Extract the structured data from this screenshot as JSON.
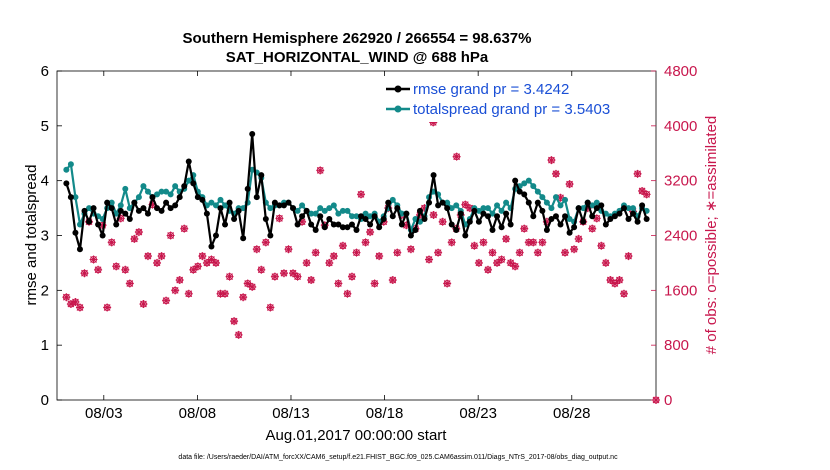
{
  "chart_data": {
    "type": "line",
    "title_line1": "Southern Hemisphere 262920 / 266554 = 98.637%",
    "title_line2": "SAT_HORIZONTAL_WIND @ 688 hPa",
    "xlabel": "Aug.01,2017 00:00:00 start",
    "ylabel_left": "rmse and totalspread",
    "ylabel_right": "# of obs: o=possible; ∗=assimilated",
    "footnote": "data file: /Users/raeder/DAI/ATM_forcXX/CAM6_setup/f.e21.FHIST_BGC.f09_025.CAM6assim.011/Diags_NTrS_2017-08/obs_diag_output.nc",
    "x_range": [
      0.5,
      32.5
    ],
    "ylim_left": [
      0,
      6
    ],
    "ylim_right": [
      0,
      4800
    ],
    "x_ticks": [
      {
        "label": "08/03",
        "x": 3
      },
      {
        "label": "08/08",
        "x": 8
      },
      {
        "label": "08/13",
        "x": 13
      },
      {
        "label": "08/18",
        "x": 18
      },
      {
        "label": "08/23",
        "x": 23
      },
      {
        "label": "08/28",
        "x": 28
      }
    ],
    "y_ticks_left": [
      "0",
      "1",
      "2",
      "3",
      "4",
      "5",
      "6"
    ],
    "y_ticks_right": [
      "0",
      "800",
      "1600",
      "2400",
      "3200",
      "4000",
      "4800"
    ],
    "colors": {
      "rmse": "#000000",
      "spread": "#138a8a",
      "obs": "#c8174d",
      "legend_text": "#1a4fd6"
    },
    "series": [
      {
        "name": "rmse grand pr = 3.4242",
        "axis": "left",
        "values": [
          3.95,
          3.7,
          3.05,
          2.75,
          3.45,
          3.25,
          3.5,
          3.2,
          3.0,
          3.6,
          3.5,
          3.2,
          3.45,
          3.4,
          3.3,
          3.6,
          3.45,
          3.5,
          3.4,
          3.7,
          3.5,
          3.45,
          3.6,
          3.5,
          3.55,
          3.7,
          3.9,
          4.35,
          3.95,
          3.7,
          3.65,
          3.4,
          2.8,
          3.0,
          3.5,
          3.2,
          3.6,
          3.3,
          3.45,
          2.95,
          3.85,
          4.85,
          3.7,
          4.1,
          3.3,
          3.0,
          3.6,
          3.55,
          3.55,
          3.6,
          3.5,
          3.2,
          3.35,
          3.45,
          3.2,
          3.1,
          3.35,
          3.15,
          3.3,
          3.2,
          3.2,
          3.15,
          3.15,
          3.2,
          3.1,
          3.35,
          3.3,
          3.2,
          3.35,
          3.15,
          3.3,
          3.6,
          3.35,
          3.5,
          3.2,
          3.4,
          3.0,
          3.1,
          3.45,
          3.3,
          3.6,
          4.1,
          3.55,
          3.6,
          3.5,
          3.2,
          3.1,
          3.4,
          3.0,
          3.25,
          3.45,
          3.25,
          3.4,
          3.35,
          3.1,
          3.35,
          3.15,
          3.4,
          3.2,
          4.0,
          3.8,
          3.75,
          3.6,
          3.35,
          3.6,
          3.45,
          3.1,
          3.3,
          3.35,
          3.2,
          3.35,
          3.05,
          3.15,
          3.5,
          3.25,
          3.6,
          3.35,
          3.5,
          3.55,
          3.2,
          3.3,
          3.35,
          3.4,
          3.5,
          3.3,
          3.4,
          3.25,
          3.55,
          3.3
        ]
      },
      {
        "name": "totalspread grand pr = 3.5403",
        "axis": "left",
        "values": [
          4.2,
          4.3,
          3.7,
          3.2,
          3.4,
          3.5,
          3.4,
          3.35,
          3.3,
          3.5,
          3.6,
          3.4,
          3.55,
          3.85,
          3.5,
          3.6,
          3.7,
          3.9,
          3.8,
          3.7,
          3.75,
          3.8,
          3.8,
          3.75,
          3.9,
          3.8,
          3.85,
          4.0,
          4.1,
          3.8,
          3.7,
          3.55,
          3.6,
          3.55,
          3.65,
          3.55,
          3.45,
          3.4,
          3.5,
          3.5,
          3.6,
          4.2,
          4.15,
          4.05,
          3.6,
          3.5,
          3.55,
          3.55,
          3.6,
          3.6,
          3.5,
          3.45,
          3.55,
          3.45,
          3.4,
          3.4,
          3.5,
          3.45,
          3.5,
          3.55,
          3.4,
          3.45,
          3.45,
          3.35,
          3.35,
          3.3,
          3.4,
          3.35,
          3.4,
          3.25,
          3.35,
          3.5,
          3.65,
          3.55,
          3.4,
          3.4,
          3.1,
          3.3,
          3.25,
          3.35,
          3.7,
          3.8,
          3.75,
          3.6,
          3.6,
          3.5,
          3.55,
          3.45,
          3.2,
          3.3,
          3.5,
          3.45,
          3.5,
          3.5,
          3.4,
          3.55,
          3.45,
          3.6,
          3.5,
          3.85,
          3.9,
          3.95,
          4.0,
          3.9,
          3.8,
          3.7,
          3.6,
          3.5,
          3.7,
          3.55,
          3.65,
          3.3,
          3.25,
          3.5,
          3.5,
          3.6,
          3.55,
          3.6,
          3.45,
          3.4,
          3.35,
          3.4,
          3.45,
          3.55,
          3.5,
          3.5,
          3.35,
          3.5,
          3.45
        ]
      },
      {
        "name": "obs possible / assimilated",
        "axis": "right",
        "values": [
          1500,
          1400,
          1430,
          1350,
          1850,
          2600,
          2050,
          1900,
          2550,
          1350,
          2300,
          1950,
          2650,
          1900,
          1700,
          2350,
          2450,
          1400,
          2100,
          2850,
          2000,
          2100,
          1450,
          2400,
          1600,
          1750,
          2500,
          1550,
          1900,
          1950,
          2100,
          2000,
          2050,
          2000,
          1550,
          1550,
          1800,
          1150,
          950,
          1500,
          1700,
          1650,
          2200,
          1900,
          2300,
          1350,
          1800,
          2650,
          1850,
          2200,
          1850,
          1800,
          2600,
          2000,
          1750,
          2150,
          3350,
          2550,
          2000,
          2100,
          1700,
          2250,
          1550,
          1800,
          2150,
          3000,
          2300,
          2450,
          1700,
          2100,
          2600,
          2800,
          1750,
          2150,
          2700,
          2550,
          2200,
          2500,
          2700,
          2800,
          2050,
          2700,
          2150,
          2600,
          1700,
          2300,
          2500,
          2700,
          2850,
          2800,
          2250,
          2000,
          2300,
          1900,
          2150,
          2000,
          2050,
          2350,
          2000,
          1950,
          2150,
          2500,
          2300,
          2300,
          2150,
          2300,
          2600,
          3500,
          3300,
          2950,
          2150,
          3150,
          2200,
          2350,
          2600,
          2800,
          2500,
          2650,
          2250,
          2000,
          1750,
          1700,
          1750,
          1550,
          2100,
          2750,
          3300,
          3050,
          3000
        ]
      }
    ],
    "obs_special_points": [
      {
        "x": 20.6,
        "value": 4050
      },
      {
        "x": 20.9,
        "value": 4250
      },
      {
        "x": 21.85,
        "value": 3550
      },
      {
        "x": 32.5,
        "value": 0
      }
    ],
    "legend": {
      "position": "top-right",
      "entries": [
        "rmse grand pr = 3.4242",
        "totalspread grand pr = 3.5403"
      ]
    }
  }
}
